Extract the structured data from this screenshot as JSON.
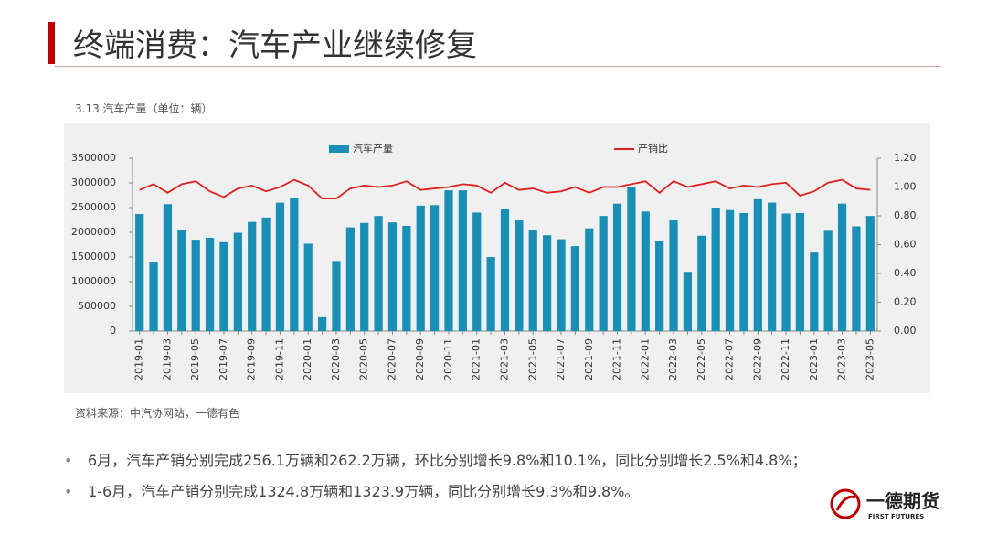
{
  "header": {
    "title": "终端消费：汽车产业继续修复"
  },
  "chart_data": {
    "type": "bar",
    "caption": "3.13 汽车产量（单位：辆）",
    "source": "资料来源：中汽协网站，一德有色",
    "categories": [
      "2019-01",
      null,
      "2019-03",
      null,
      "2019-05",
      null,
      "2019-07",
      null,
      "2019-09",
      null,
      "2019-11",
      null,
      "2020-01",
      null,
      "2020-03",
      null,
      "2020-05",
      null,
      "2020-07",
      null,
      "2020-09",
      null,
      "2020-11",
      null,
      "2021-01",
      null,
      "2021-03",
      null,
      "2021-05",
      null,
      "2021-07",
      null,
      "2021-09",
      null,
      "2021-11",
      null,
      "2022-01",
      null,
      "2022-03",
      null,
      "2022-05",
      null,
      "2022-07",
      null,
      "2022-09",
      null,
      "2022-11",
      null,
      "2023-01",
      null,
      "2023-03",
      null,
      "2023-05"
    ],
    "series": [
      {
        "name": "汽车产量",
        "type": "bar",
        "color": "#1a8fb5",
        "values": [
          2370000,
          1400000,
          2570000,
          2050000,
          1850000,
          1890000,
          1800000,
          1990000,
          2210000,
          2300000,
          2600000,
          2690000,
          1770000,
          280000,
          1420000,
          2100000,
          2190000,
          2330000,
          2200000,
          2130000,
          2540000,
          2550000,
          2850000,
          2850000,
          2400000,
          1500000,
          2470000,
          2240000,
          2050000,
          1940000,
          1860000,
          1720000,
          2080000,
          2330000,
          2580000,
          2910000,
          2420000,
          1820000,
          2240000,
          1200000,
          1930000,
          2500000,
          2450000,
          2390000,
          2670000,
          2600000,
          2380000,
          2390000,
          1590000,
          2030000,
          2580000,
          2120000,
          2330000
        ]
      },
      {
        "name": "产销比",
        "type": "line",
        "axis": "y2",
        "color": "#e02020",
        "values": [
          0.98,
          1.02,
          0.96,
          1.02,
          1.04,
          0.97,
          0.93,
          0.99,
          1.01,
          0.97,
          1.0,
          1.05,
          1.01,
          0.92,
          0.92,
          0.99,
          1.01,
          1.0,
          1.01,
          1.04,
          0.98,
          0.99,
          1.0,
          1.02,
          1.01,
          0.96,
          1.03,
          0.98,
          0.99,
          0.96,
          0.97,
          1.0,
          0.96,
          1.0,
          1.0,
          1.02,
          1.04,
          0.96,
          1.04,
          1.0,
          1.02,
          1.04,
          0.99,
          1.01,
          1.0,
          1.02,
          1.03,
          0.94,
          0.97,
          1.03,
          1.05,
          0.99,
          0.98
        ]
      }
    ],
    "ylim": [
      0,
      3500000
    ],
    "yticks": [
      0,
      500000,
      1000000,
      1500000,
      2000000,
      2500000,
      3000000,
      3500000
    ],
    "y2lim": [
      0,
      1.2
    ],
    "y2ticks": [
      {
        "value": 0,
        "label": "0.00"
      },
      {
        "value": 0.2,
        "label": "0.20"
      },
      {
        "value": 0.4,
        "label": "0.40"
      },
      {
        "value": 0.6,
        "label": "0.60"
      },
      {
        "value": 0.8,
        "label": "0.80"
      },
      {
        "value": 1.0,
        "label": "1.00"
      },
      {
        "value": 1.2,
        "label": "1.20"
      }
    ],
    "grid": false,
    "legend": "top"
  },
  "bullets": [
    "6月，汽车产销分别完成256.1万辆和262.2万辆，环比分别增长9.8%和10.1%，同比分别增长2.5%和4.8%；",
    "1-6月，汽车产销分别完成1324.8万辆和1323.9万辆，同比分别增长9.3%和9.8%。"
  ],
  "logo": {
    "name": "一德期货",
    "subtitle": "FIRST FUTURES"
  }
}
